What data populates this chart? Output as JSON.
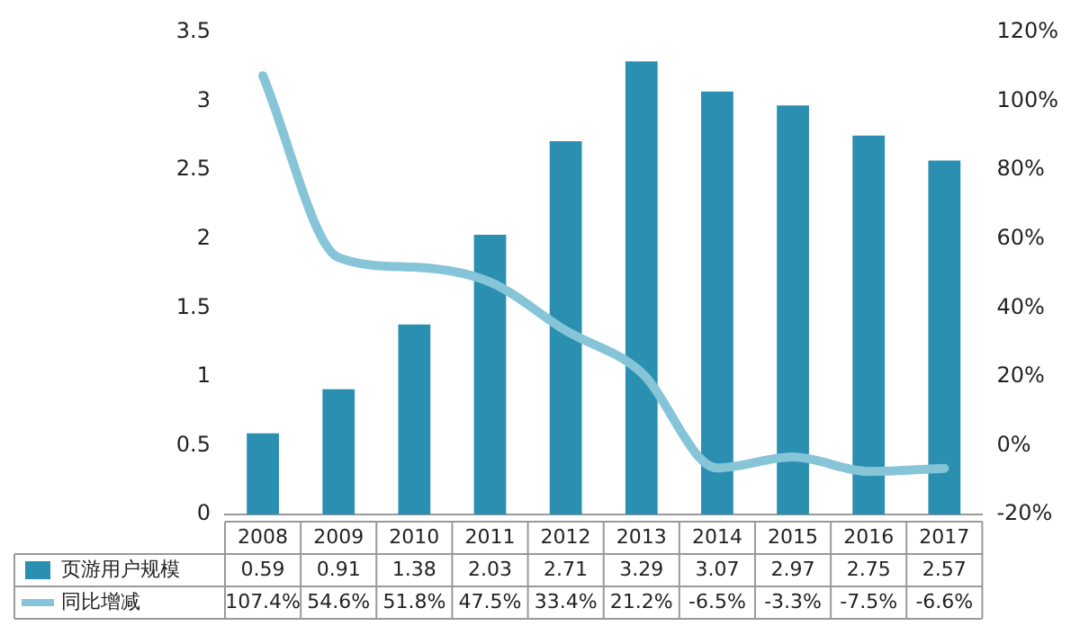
{
  "chart_data": {
    "type": "bar",
    "categories": [
      "2008",
      "2009",
      "2010",
      "2011",
      "2012",
      "2013",
      "2014",
      "2015",
      "2016",
      "2017"
    ],
    "series": [
      {
        "name": "页游用户规模",
        "color": "#2a8fb0",
        "values": [
          0.59,
          0.91,
          1.38,
          2.03,
          2.71,
          3.29,
          3.07,
          2.97,
          2.75,
          2.57
        ],
        "value_labels": [
          "0.59",
          "0.91",
          "1.38",
          "2.03",
          "2.71",
          "3.29",
          "3.07",
          "2.97",
          "2.75",
          "2.57"
        ]
      },
      {
        "name": "同比增减",
        "type": "line",
        "axis": "y2",
        "color": "#86c5d8",
        "values": [
          107.4,
          54.6,
          51.8,
          47.5,
          33.4,
          21.2,
          -6.5,
          -3.3,
          -7.5,
          -6.6
        ],
        "value_labels": [
          "107.4%",
          "54.6%",
          "51.8%",
          "47.5%",
          "33.4%",
          "21.2%",
          "-6.5%",
          "-3.3%",
          "-7.5%",
          "-6.6%"
        ]
      }
    ],
    "ylim": [
      0,
      3.5
    ],
    "yticks": [
      0,
      0.5,
      1,
      1.5,
      2,
      2.5,
      3,
      3.5
    ],
    "y2lim": [
      -20,
      120
    ],
    "y2ticks": [
      {
        "value": -20,
        "label": "-20%"
      },
      {
        "value": 0,
        "label": "0%"
      },
      {
        "value": 20,
        "label": "20%"
      },
      {
        "value": 40,
        "label": "40%"
      },
      {
        "value": 60,
        "label": "60%"
      },
      {
        "value": 80,
        "label": "80%"
      },
      {
        "value": 100,
        "label": "100%"
      },
      {
        "value": 120,
        "label": "120%"
      }
    ],
    "grid": false,
    "legend": "bottom left",
    "marker": "none",
    "line_style": "solid"
  }
}
